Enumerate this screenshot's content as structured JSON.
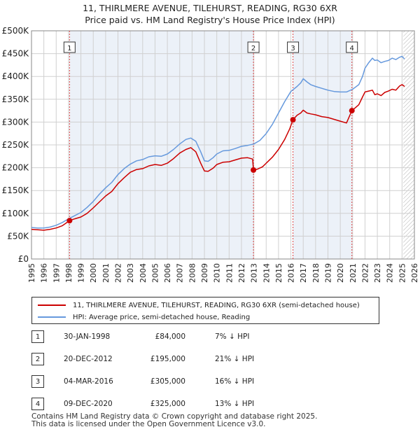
{
  "title_line1": "11, THIRLMERE AVENUE, TILEHURST, READING, RG30 6XR",
  "title_line2": "Price paid vs. HM Land Registry's House Price Index (HPI)",
  "colors": {
    "property": "#cc0000",
    "hpi": "#6699dd",
    "vline": "#dd4444",
    "shade": "#dde6f3",
    "grid": "#d0d0d0"
  },
  "chart_data": {
    "type": "line",
    "title": "Price paid vs. HM Land Registry's House Price Index (HPI)",
    "xlabel": "",
    "ylabel": "",
    "xlim": [
      1995,
      2026
    ],
    "ylim": [
      0,
      500000
    ],
    "y_ticks": [
      0,
      50000,
      100000,
      150000,
      200000,
      250000,
      300000,
      350000,
      400000,
      450000,
      500000
    ],
    "y_tick_labels": [
      "£0",
      "£50K",
      "£100K",
      "£150K",
      "£200K",
      "£250K",
      "£300K",
      "£350K",
      "£400K",
      "£450K",
      "£500K"
    ],
    "x_ticks": [
      1995,
      1996,
      1997,
      1998,
      1999,
      2000,
      2001,
      2002,
      2003,
      2004,
      2005,
      2006,
      2007,
      2008,
      2009,
      2010,
      2011,
      2012,
      2013,
      2014,
      2015,
      2016,
      2017,
      2018,
      2019,
      2020,
      2021,
      2022,
      2023,
      2024,
      2025,
      2026
    ],
    "grid": true,
    "hatched_future_from": 2025.1,
    "series": [
      {
        "name": "11, THIRLMERE AVENUE, TILEHURST, READING, RG30 6XR (semi-detached house)",
        "color": "#cc0000",
        "x": [
          1995.0,
          1995.5,
          1996.0,
          1996.5,
          1997.0,
          1997.5,
          1998.08,
          1998.5,
          1999.0,
          1999.5,
          2000.0,
          2000.5,
          2001.0,
          2001.5,
          2002.0,
          2002.5,
          2003.0,
          2003.5,
          2004.0,
          2004.5,
          2005.0,
          2005.5,
          2006.0,
          2006.5,
          2007.0,
          2007.5,
          2007.9,
          2008.3,
          2008.7,
          2009.0,
          2009.3,
          2009.7,
          2010.0,
          2010.5,
          2011.0,
          2011.5,
          2012.0,
          2012.5,
          2012.9,
          2012.97,
          2013.3,
          2013.7,
          2014.0,
          2014.5,
          2015.0,
          2015.5,
          2015.9,
          2016.17,
          2016.5,
          2016.8,
          2017.0,
          2017.3,
          2017.6,
          2018.0,
          2018.5,
          2019.0,
          2019.5,
          2020.0,
          2020.5,
          2020.94,
          2021.2,
          2021.5,
          2021.8,
          2022.0,
          2022.3,
          2022.6,
          2022.8,
          2023.0,
          2023.3,
          2023.6,
          2023.9,
          2024.2,
          2024.5,
          2024.8,
          2025.0,
          2025.2
        ],
        "values": [
          65000,
          64000,
          63000,
          65000,
          68000,
          73000,
          84000,
          88000,
          92000,
          100000,
          112000,
          125000,
          138000,
          148000,
          165000,
          178000,
          190000,
          196000,
          198000,
          204000,
          207000,
          205000,
          210000,
          220000,
          232000,
          240000,
          244000,
          235000,
          210000,
          193000,
          192000,
          199000,
          207000,
          212000,
          213000,
          217000,
          221000,
          222000,
          219000,
          195000,
          197000,
          202000,
          210000,
          223000,
          240000,
          262000,
          285000,
          305000,
          315000,
          320000,
          326000,
          320000,
          318000,
          316000,
          312000,
          310000,
          306000,
          302000,
          298000,
          325000,
          331000,
          338000,
          355000,
          366000,
          368000,
          370000,
          360000,
          362000,
          358000,
          365000,
          368000,
          372000,
          370000,
          379000,
          382000,
          378000
        ]
      },
      {
        "name": "HPI: Average price, semi-detached house, Reading",
        "color": "#6699dd",
        "x": [
          1995.0,
          1995.5,
          1996.0,
          1996.5,
          1997.0,
          1997.5,
          1998.0,
          1998.5,
          1999.0,
          1999.5,
          2000.0,
          2000.5,
          2001.0,
          2001.5,
          2002.0,
          2002.5,
          2003.0,
          2003.5,
          2004.0,
          2004.5,
          2005.0,
          2005.5,
          2006.0,
          2006.5,
          2007.0,
          2007.5,
          2007.9,
          2008.3,
          2008.7,
          2009.0,
          2009.3,
          2009.7,
          2010.0,
          2010.5,
          2011.0,
          2011.5,
          2012.0,
          2012.5,
          2013.0,
          2013.5,
          2014.0,
          2014.5,
          2015.0,
          2015.5,
          2016.0,
          2016.5,
          2016.8,
          2017.0,
          2017.3,
          2017.6,
          2018.0,
          2018.5,
          2019.0,
          2019.5,
          2020.0,
          2020.5,
          2021.0,
          2021.5,
          2021.8,
          2022.0,
          2022.3,
          2022.6,
          2022.8,
          2023.0,
          2023.3,
          2023.6,
          2023.9,
          2024.2,
          2024.5,
          2024.8,
          2025.0,
          2025.2
        ],
        "values": [
          69000,
          68000,
          68000,
          70000,
          74000,
          80000,
          88000,
          95000,
          102000,
          113000,
          126000,
          142000,
          156000,
          168000,
          185000,
          198000,
          208000,
          215000,
          218000,
          224000,
          226000,
          225000,
          230000,
          240000,
          252000,
          262000,
          265000,
          258000,
          235000,
          215000,
          214000,
          222000,
          230000,
          237000,
          238000,
          242000,
          247000,
          249000,
          252000,
          260000,
          275000,
          295000,
          320000,
          345000,
          367000,
          378000,
          386000,
          395000,
          388000,
          382000,
          378000,
          374000,
          370000,
          367000,
          366000,
          366000,
          372000,
          382000,
          400000,
          418000,
          430000,
          440000,
          435000,
          436000,
          430000,
          433000,
          435000,
          440000,
          437000,
          442000,
          444000,
          438000
        ]
      }
    ],
    "sales": [
      {
        "id": "1",
        "x": 1998.08,
        "price": 84000
      },
      {
        "id": "2",
        "x": 2012.97,
        "price": 195000
      },
      {
        "id": "3",
        "x": 2016.17,
        "price": 305000
      },
      {
        "id": "4",
        "x": 2020.94,
        "price": 325000
      }
    ]
  },
  "legend": {
    "property": "11, THIRLMERE AVENUE, TILEHURST, READING, RG30 6XR (semi-detached house)",
    "hpi": "HPI: Average price, semi-detached house, Reading"
  },
  "transactions": [
    {
      "num": "1",
      "date": "30-JAN-1998",
      "price": "£84,000",
      "diff": "7% ↓ HPI"
    },
    {
      "num": "2",
      "date": "20-DEC-2012",
      "price": "£195,000",
      "diff": "21% ↓ HPI"
    },
    {
      "num": "3",
      "date": "04-MAR-2016",
      "price": "£305,000",
      "diff": "16% ↓ HPI"
    },
    {
      "num": "4",
      "date": "09-DEC-2020",
      "price": "£325,000",
      "diff": "13% ↓ HPI"
    }
  ],
  "footer": {
    "line1": "Contains HM Land Registry data © Crown copyright and database right 2025.",
    "line2": "This data is licensed under the Open Government Licence v3.0."
  }
}
